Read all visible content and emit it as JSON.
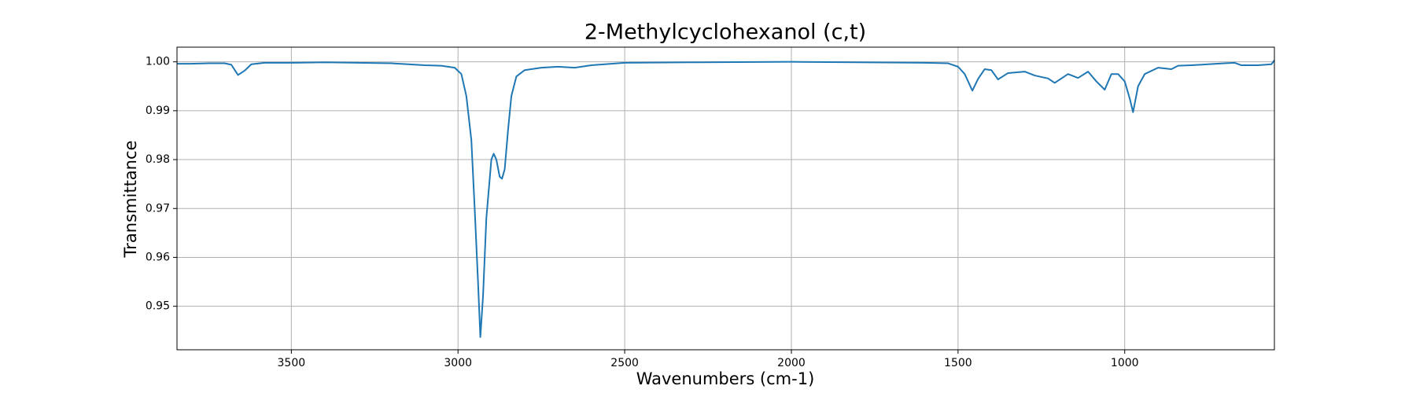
{
  "chart_data": {
    "type": "line",
    "title": "2-Methylcyclohexanol (c,t)",
    "x_label": "Wavenumbers (cm-1)",
    "y_label": "Transmittance",
    "color": "#1f77b4",
    "grid": true,
    "xlim": [
      3843,
      551
    ],
    "ylim": [
      0.9411,
      1.003
    ],
    "xticks": [
      3500,
      3000,
      2500,
      2000,
      1500,
      1000
    ],
    "yticks": [
      0.95,
      0.96,
      0.97,
      0.98,
      0.99,
      {
        "value": 1,
        "label": "1.00"
      }
    ],
    "x": [
      3843,
      3800,
      3750,
      3700,
      3680,
      3660,
      3640,
      3620,
      3580,
      3500,
      3400,
      3300,
      3200,
      3100,
      3050,
      3010,
      2990,
      2975,
      2960,
      2950,
      2940,
      2933,
      2925,
      2915,
      2900,
      2893,
      2885,
      2875,
      2868,
      2860,
      2850,
      2840,
      2825,
      2800,
      2750,
      2700,
      2650,
      2600,
      2500,
      2300,
      2000,
      1800,
      1600,
      1530,
      1500,
      1480,
      1457,
      1440,
      1420,
      1400,
      1380,
      1350,
      1300,
      1270,
      1230,
      1210,
      1170,
      1140,
      1110,
      1085,
      1060,
      1040,
      1020,
      1000,
      985,
      975,
      960,
      940,
      900,
      860,
      840,
      800,
      750,
      700,
      670,
      650,
      600,
      560,
      551
    ],
    "values": [
      0.9996,
      0.9996,
      0.9997,
      0.9997,
      0.9994,
      0.9973,
      0.9982,
      0.9995,
      0.9998,
      0.9998,
      0.9999,
      0.9998,
      0.9997,
      0.9993,
      0.9992,
      0.9988,
      0.9975,
      0.993,
      0.984,
      0.97,
      0.955,
      0.9437,
      0.952,
      0.968,
      0.98,
      0.9812,
      0.98,
      0.9765,
      0.9761,
      0.978,
      0.986,
      0.993,
      0.997,
      0.9983,
      0.9988,
      0.999,
      0.9988,
      0.9993,
      0.9998,
      0.9999,
      1.0,
      0.9999,
      0.9998,
      0.9997,
      0.999,
      0.9975,
      0.9941,
      0.9965,
      0.9985,
      0.9983,
      0.9964,
      0.9977,
      0.998,
      0.9972,
      0.9966,
      0.9957,
      0.9975,
      0.9967,
      0.998,
      0.996,
      0.9943,
      0.9975,
      0.9975,
      0.996,
      0.9925,
      0.9897,
      0.995,
      0.9975,
      0.9988,
      0.9985,
      0.9992,
      0.9993,
      0.9995,
      0.9997,
      0.9998,
      0.9993,
      0.9993,
      0.9995,
      1.0003
    ]
  }
}
